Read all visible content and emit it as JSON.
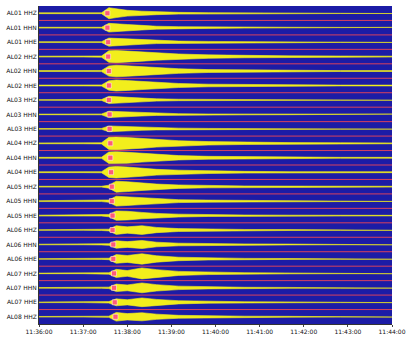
{
  "chart_data": {
    "type": "seismogram",
    "x": [
      0,
      60,
      85,
      95,
      105,
      120,
      140,
      160,
      190,
      230,
      280,
      340,
      410,
      480
    ],
    "xlim": [
      0,
      480
    ],
    "xticks": [
      {
        "value": 0,
        "label": "11:36:00"
      },
      {
        "value": 60,
        "label": "11:37:00"
      },
      {
        "value": 120,
        "label": "11:38:00"
      },
      {
        "value": 180,
        "label": "11:39:00"
      },
      {
        "value": 240,
        "label": "11:40:00"
      },
      {
        "value": 300,
        "label": "11:41:00"
      },
      {
        "value": 360,
        "label": "11:42:00"
      },
      {
        "value": 420,
        "label": "11:43:00"
      },
      {
        "value": 480,
        "label": "11:44:00"
      }
    ],
    "color": "#f2ee1c",
    "marker": "square",
    "series": [
      {
        "name": "AL01 HHZ",
        "pick": 93,
        "values": [
          0.03,
          0.03,
          0.03,
          0.38,
          0.3,
          0.2,
          0.14,
          0.1,
          0.06,
          0.04,
          0.03,
          0.03,
          0.02,
          0.02
        ]
      },
      {
        "name": "AL01 HHN",
        "pick": 93,
        "values": [
          0.03,
          0.03,
          0.03,
          0.3,
          0.28,
          0.22,
          0.16,
          0.1,
          0.07,
          0.05,
          0.03,
          0.03,
          0.02,
          0.02
        ]
      },
      {
        "name": "AL01 HHE",
        "pick": 94,
        "values": [
          0.03,
          0.03,
          0.03,
          0.28,
          0.26,
          0.2,
          0.15,
          0.1,
          0.07,
          0.05,
          0.04,
          0.03,
          0.02,
          0.02
        ]
      },
      {
        "name": "AL02 HHZ",
        "pick": 94,
        "values": [
          0.03,
          0.03,
          0.04,
          0.4,
          0.42,
          0.38,
          0.32,
          0.25,
          0.18,
          0.12,
          0.08,
          0.05,
          0.04,
          0.03
        ]
      },
      {
        "name": "AL02 HHN",
        "pick": 95,
        "values": [
          0.03,
          0.03,
          0.04,
          0.35,
          0.4,
          0.36,
          0.3,
          0.22,
          0.16,
          0.1,
          0.07,
          0.05,
          0.03,
          0.03
        ]
      },
      {
        "name": "AL02 HHE",
        "pick": 95,
        "values": [
          0.03,
          0.03,
          0.04,
          0.32,
          0.38,
          0.34,
          0.28,
          0.2,
          0.14,
          0.09,
          0.06,
          0.04,
          0.03,
          0.03
        ]
      },
      {
        "name": "AL03 HHZ",
        "pick": 95,
        "values": [
          0.02,
          0.02,
          0.03,
          0.25,
          0.22,
          0.16,
          0.12,
          0.08,
          0.05,
          0.04,
          0.03,
          0.02,
          0.02,
          0.02
        ]
      },
      {
        "name": "AL03 HHN",
        "pick": 96,
        "values": [
          0.02,
          0.02,
          0.03,
          0.22,
          0.2,
          0.15,
          0.11,
          0.07,
          0.05,
          0.03,
          0.03,
          0.02,
          0.02,
          0.02
        ]
      },
      {
        "name": "AL03 HHE",
        "pick": 96,
        "values": [
          0.02,
          0.02,
          0.03,
          0.2,
          0.18,
          0.14,
          0.1,
          0.07,
          0.05,
          0.03,
          0.02,
          0.02,
          0.02,
          0.02
        ]
      },
      {
        "name": "AL04 HHZ",
        "pick": 97,
        "values": [
          0.03,
          0.03,
          0.04,
          0.42,
          0.44,
          0.4,
          0.34,
          0.26,
          0.18,
          0.12,
          0.08,
          0.05,
          0.04,
          0.03
        ]
      },
      {
        "name": "AL04 HHN",
        "pick": 97,
        "values": [
          0.03,
          0.03,
          0.04,
          0.4,
          0.42,
          0.38,
          0.3,
          0.22,
          0.15,
          0.1,
          0.07,
          0.05,
          0.03,
          0.03
        ]
      },
      {
        "name": "AL04 HHE",
        "pick": 98,
        "values": [
          0.03,
          0.03,
          0.04,
          0.36,
          0.4,
          0.36,
          0.28,
          0.2,
          0.14,
          0.09,
          0.06,
          0.04,
          0.03,
          0.03
        ]
      },
      {
        "name": "AL05 HHZ",
        "pick": 99,
        "values": [
          0.03,
          0.03,
          0.03,
          0.1,
          0.38,
          0.34,
          0.26,
          0.18,
          0.12,
          0.08,
          0.05,
          0.04,
          0.03,
          0.03
        ]
      },
      {
        "name": "AL05 HHN",
        "pick": 99,
        "values": [
          0.03,
          0.03,
          0.03,
          0.08,
          0.34,
          0.3,
          0.24,
          0.16,
          0.1,
          0.07,
          0.05,
          0.03,
          0.03,
          0.02
        ]
      },
      {
        "name": "AL05 HHE",
        "pick": 100,
        "values": [
          0.03,
          0.03,
          0.03,
          0.08,
          0.32,
          0.3,
          0.22,
          0.15,
          0.1,
          0.06,
          0.04,
          0.03,
          0.03,
          0.02
        ]
      },
      {
        "name": "AL06 HHZ",
        "pick": 100,
        "values": [
          0.02,
          0.02,
          0.03,
          0.06,
          0.3,
          0.22,
          0.3,
          0.18,
          0.1,
          0.06,
          0.04,
          0.03,
          0.02,
          0.02
        ]
      },
      {
        "name": "AL06 HHN",
        "pick": 101,
        "values": [
          0.02,
          0.02,
          0.03,
          0.06,
          0.26,
          0.2,
          0.28,
          0.16,
          0.09,
          0.05,
          0.04,
          0.03,
          0.02,
          0.02
        ]
      },
      {
        "name": "AL06 HHE",
        "pick": 101,
        "values": [
          0.02,
          0.02,
          0.03,
          0.05,
          0.3,
          0.24,
          0.36,
          0.22,
          0.12,
          0.07,
          0.04,
          0.03,
          0.02,
          0.02
        ]
      },
      {
        "name": "AL07 HHZ",
        "pick": 102,
        "values": [
          0.02,
          0.02,
          0.03,
          0.05,
          0.28,
          0.2,
          0.38,
          0.26,
          0.14,
          0.08,
          0.05,
          0.03,
          0.02,
          0.02
        ]
      },
      {
        "name": "AL07 HHN",
        "pick": 102,
        "values": [
          0.02,
          0.02,
          0.03,
          0.05,
          0.26,
          0.2,
          0.34,
          0.22,
          0.12,
          0.07,
          0.04,
          0.03,
          0.02,
          0.02
        ]
      },
      {
        "name": "AL07 HHE",
        "pick": 103,
        "values": [
          0.02,
          0.02,
          0.03,
          0.05,
          0.24,
          0.18,
          0.3,
          0.2,
          0.11,
          0.06,
          0.04,
          0.03,
          0.02,
          0.02
        ]
      },
      {
        "name": "AL08 HHZ",
        "pick": 104,
        "values": [
          0.02,
          0.02,
          0.03,
          0.04,
          0.3,
          0.22,
          0.28,
          0.18,
          0.1,
          0.06,
          0.04,
          0.03,
          0.02,
          0.02
        ]
      }
    ]
  }
}
